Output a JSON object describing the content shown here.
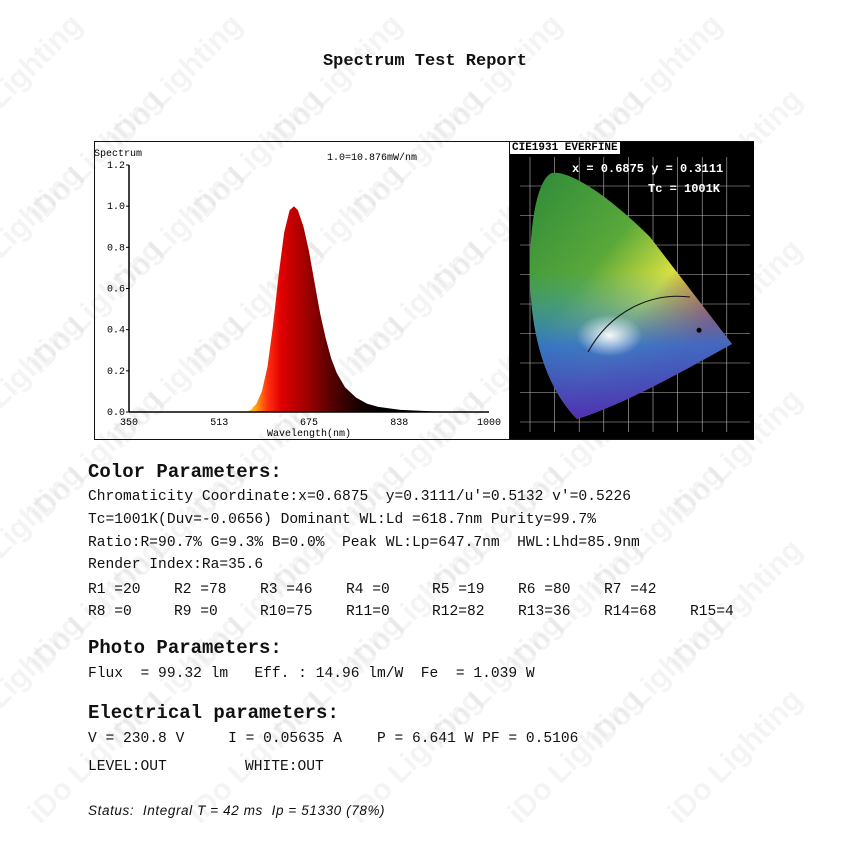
{
  "watermark": "iDo Lighting",
  "title": "Spectrum Test Report",
  "chart_data": [
    {
      "type": "area",
      "title": "Spectrum",
      "annotation": "1.0=10.876mW/nm",
      "xlabel": "Wavelength(nm)",
      "ylabel": "",
      "xlim": [
        350,
        1000
      ],
      "ylim": [
        0,
        1.2
      ],
      "xticks": [
        "350",
        "513",
        "675",
        "838",
        "1000"
      ],
      "yticks": [
        "0.0",
        "0.2",
        "0.4",
        "0.6",
        "0.8",
        "1.0",
        "1.2"
      ],
      "grid": false,
      "fill": "wavelength color gradient (yellow-orange-red-black)",
      "x": [
        350,
        560,
        570,
        580,
        590,
        600,
        610,
        620,
        630,
        640,
        648,
        655,
        665,
        675,
        685,
        695,
        705,
        715,
        725,
        740,
        760,
        780,
        800,
        840,
        900,
        1000
      ],
      "y": [
        0,
        0,
        0.01,
        0.04,
        0.1,
        0.22,
        0.42,
        0.66,
        0.87,
        0.98,
        1.0,
        0.98,
        0.9,
        0.78,
        0.63,
        0.48,
        0.36,
        0.26,
        0.19,
        0.12,
        0.07,
        0.04,
        0.025,
        0.01,
        0.003,
        0
      ]
    },
    {
      "type": "scatter",
      "title": "CIE1931 EVERFINE",
      "coordinate_label": "x = 0.6875 y = 0.3111",
      "tc_label": "Tc = 1001K",
      "x": [
        0.6875
      ],
      "y": [
        0.3111
      ]
    }
  ],
  "color_parameters": {
    "heading": "Color Parameters:",
    "lines": [
      "Chromaticity Coordinate:x=0.6875  y=0.3111/u'=0.5132 v'=0.5226",
      "Tc=1001K(Duv=-0.0656) Dominant WL:Ld =618.7nm Purity=99.7%",
      "Ratio:R=90.7% G=9.3% B=0.0%  Peak WL:Lp=647.7nm  HWL:Lhd=85.9nm",
      "Render Index:Ra=35.6"
    ],
    "r_row1": [
      "R1 =20",
      "R2 =78",
      "R3 =46",
      "R4 =0",
      "R5 =19",
      "R6 =80",
      "R7 =42"
    ],
    "r_row2": [
      "R8 =0",
      "R9 =0",
      "R10=75",
      "R11=0",
      "R12=82",
      "R13=36",
      "R14=68",
      "R15=4"
    ]
  },
  "photo_parameters": {
    "heading": "Photo Parameters:",
    "line": "Flux  = 99.32 lm   Eff. : 14.96 lm/W  Fe  = 1.039 W"
  },
  "electrical_parameters": {
    "heading": "Electrical parameters:",
    "line": "V = 230.8 V     I = 0.05635 A    P = 6.641 W PF = 0.5106",
    "level": "LEVEL:OUT",
    "white": "WHITE:OUT"
  },
  "status": "Status:  Integral T = 42 ms  Ip = 51330 (78%)"
}
